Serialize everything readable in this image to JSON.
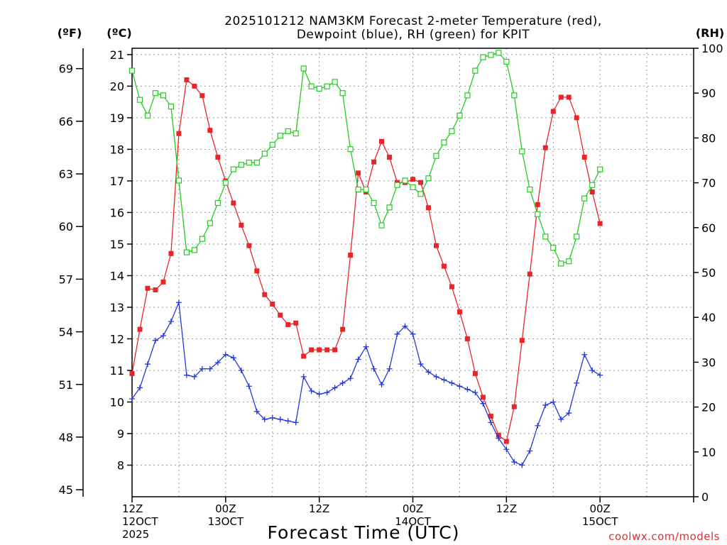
{
  "chart_data": {
    "type": "line",
    "title_line1": "2025101212 NAM3KM Forecast 2-meter Temperature (red),",
    "title_line2": "Dewpoint (blue), RH (green) for KPIT",
    "unit_f": "(ºF)",
    "unit_c": "(ºC)",
    "unit_rh": "(RH)",
    "xlabel": "Forecast Time (UTC)",
    "credit": "coolwx.com/models",
    "xlim": [
      0,
      72
    ],
    "ylim_c": [
      7,
      21.2
    ],
    "ylim_rh": [
      0,
      100
    ],
    "c_ticks": [
      "8",
      "9",
      "10",
      "11",
      "12",
      "13",
      "14",
      "15",
      "16",
      "17",
      "18",
      "19",
      "20",
      "21"
    ],
    "f_ticks": [
      "45",
      "48",
      "51",
      "54",
      "57",
      "60",
      "63",
      "66",
      "69"
    ],
    "rh_ticks": [
      "0",
      "10",
      "20",
      "30",
      "40",
      "50",
      "60",
      "70",
      "80",
      "90",
      "100"
    ],
    "x_tick_labels": [
      {
        "x": 0,
        "l1": "12Z",
        "l2": "12OCT",
        "l3": "2025"
      },
      {
        "x": 12,
        "l1": "00Z",
        "l2": "13OCT",
        "l3": ""
      },
      {
        "x": 24,
        "l1": "12Z",
        "l2": "",
        "l3": ""
      },
      {
        "x": 36,
        "l1": "00Z",
        "l2": "14OCT",
        "l3": ""
      },
      {
        "x": 48,
        "l1": "12Z",
        "l2": "",
        "l3": ""
      },
      {
        "x": 60,
        "l1": "00Z",
        "l2": "15OCT",
        "l3": ""
      }
    ],
    "grid": true,
    "series": [
      {
        "key": "temperature",
        "color": "#e8262a",
        "marker": "filled-square",
        "axis": "c",
        "x": [
          0,
          1,
          2,
          3,
          4,
          5,
          6,
          7,
          8,
          9,
          10,
          11,
          12,
          13,
          14,
          15,
          16,
          17,
          18,
          19,
          20,
          21,
          22,
          23,
          24,
          25,
          26,
          27,
          28,
          29,
          30,
          31,
          32,
          33,
          34,
          35,
          36,
          37,
          38,
          39,
          40,
          41,
          42,
          43,
          44,
          45,
          46,
          47,
          48,
          49,
          50,
          51,
          52,
          53,
          54,
          55,
          56,
          57,
          58,
          59,
          60
        ],
        "values": [
          10.9,
          12.3,
          13.6,
          13.55,
          13.8,
          14.7,
          18.5,
          20.2,
          20.0,
          19.7,
          18.6,
          17.75,
          17.0,
          16.3,
          15.6,
          14.95,
          14.15,
          13.4,
          13.1,
          12.75,
          12.45,
          12.5,
          11.45,
          11.65,
          11.65,
          11.65,
          11.65,
          12.3,
          14.65,
          17.25,
          16.65,
          17.6,
          18.25,
          17.75,
          16.95,
          16.95,
          17.05,
          16.95,
          16.15,
          14.95,
          14.3,
          13.65,
          12.85,
          12.0,
          10.9,
          10.15,
          9.55,
          8.95,
          8.75,
          9.85,
          11.95,
          14.05,
          16.25,
          18.05,
          19.2,
          19.65,
          19.65,
          19.0,
          17.75,
          16.65,
          15.65
        ]
      },
      {
        "key": "dewpoint",
        "color": "#2438d8",
        "marker": "plus",
        "axis": "c",
        "x": [
          0,
          1,
          2,
          3,
          4,
          5,
          6,
          7,
          8,
          9,
          10,
          11,
          12,
          13,
          14,
          15,
          16,
          17,
          18,
          19,
          20,
          21,
          22,
          23,
          24,
          25,
          26,
          27,
          28,
          29,
          30,
          31,
          32,
          33,
          34,
          35,
          36,
          37,
          38,
          39,
          40,
          41,
          42,
          43,
          44,
          45,
          46,
          47,
          48,
          49,
          50,
          51,
          52,
          53,
          54,
          55,
          56,
          57,
          58,
          59,
          60
        ],
        "values": [
          10.1,
          10.45,
          11.2,
          11.95,
          12.1,
          12.55,
          13.15,
          10.85,
          10.8,
          11.05,
          11.05,
          11.25,
          11.5,
          11.4,
          11.0,
          10.5,
          9.7,
          9.45,
          9.5,
          9.45,
          9.4,
          9.35,
          10.8,
          10.35,
          10.25,
          10.3,
          10.45,
          10.6,
          10.75,
          11.35,
          11.75,
          11.05,
          10.55,
          11.05,
          12.15,
          12.4,
          12.15,
          11.2,
          10.95,
          10.8,
          10.7,
          10.6,
          10.5,
          10.4,
          10.3,
          9.95,
          9.35,
          8.85,
          8.5,
          8.1,
          8.0,
          8.45,
          9.25,
          9.9,
          10.0,
          9.45,
          9.65,
          10.6,
          11.5,
          11.0,
          10.85
        ]
      },
      {
        "key": "rh",
        "color": "#22cc22",
        "marker": "open-square",
        "axis": "rh",
        "x": [
          0,
          1,
          2,
          3,
          4,
          5,
          6,
          7,
          8,
          9,
          10,
          11,
          12,
          13,
          14,
          15,
          16,
          17,
          18,
          19,
          20,
          21,
          22,
          23,
          24,
          25,
          26,
          27,
          28,
          29,
          30,
          31,
          32,
          33,
          34,
          35,
          36,
          37,
          38,
          39,
          40,
          41,
          42,
          43,
          44,
          45,
          46,
          47,
          48,
          49,
          50,
          51,
          52,
          53,
          54,
          55,
          56,
          57,
          58,
          59,
          60
        ],
        "values": [
          95,
          88.5,
          85,
          90,
          89.5,
          87,
          70.5,
          54.5,
          55,
          57.5,
          61,
          65.5,
          70,
          73,
          74,
          74.5,
          74.5,
          76.5,
          78.5,
          80.5,
          81.5,
          81,
          95.5,
          91.5,
          91,
          91.5,
          92.5,
          90,
          77.5,
          68.5,
          68.5,
          65.5,
          60.5,
          64.5,
          69.5,
          70.5,
          69,
          67.5,
          71,
          76,
          79,
          81.5,
          85,
          89.5,
          95,
          98,
          98.5,
          99,
          97,
          89.5,
          77,
          68.5,
          63,
          58,
          55.5,
          52,
          52.5,
          58,
          66.5,
          69.5,
          73
        ]
      }
    ]
  }
}
